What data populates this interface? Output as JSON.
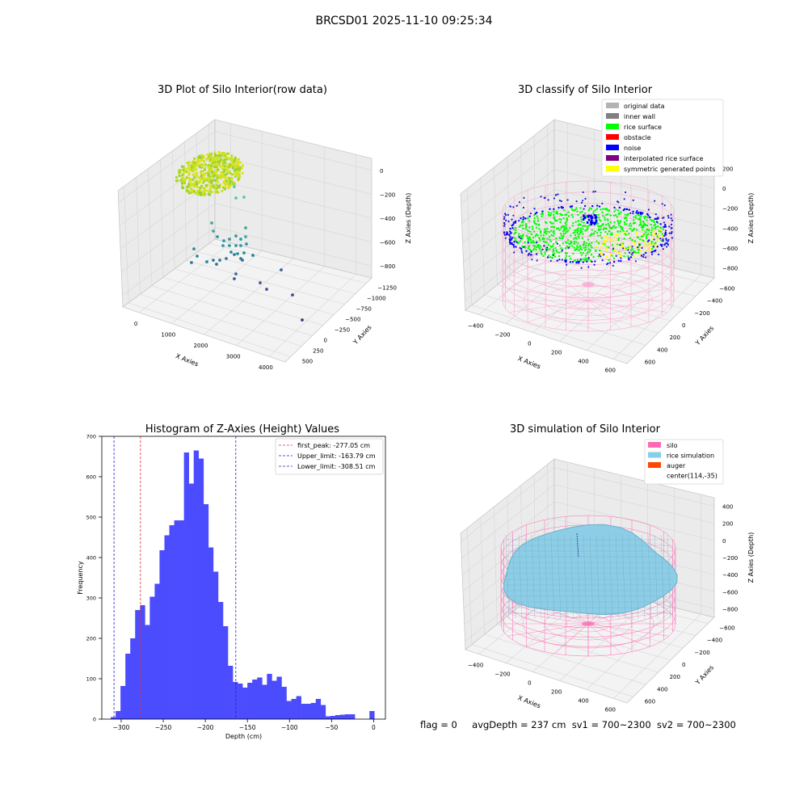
{
  "figure": {
    "suptitle": "BRCSD01 2025-11-10 09:25:34",
    "footer": {
      "flag": "flag = 0",
      "avg_depth": "avgDepth = 237 cm",
      "sv1": "sv1 = 700~2300",
      "sv2": "sv2 = 700~2300"
    }
  },
  "colors": {
    "hist_bar": "#4c4cff",
    "first_peak_line": "#e03030",
    "limit_line": "#2020c0",
    "silo_wire": "#ff69b4",
    "rice_simulation": "#8ecde6",
    "grid_pane": "#f2f2f2"
  },
  "chart_data": [
    {
      "type": "scatter3d",
      "title": "3D Plot of Silo Interior(row data)",
      "xlabel": "X Axies",
      "ylabel": "Y Axies",
      "zlabel": "Z Axies (Depth)",
      "xticks": [
        "0",
        "1000",
        "2000",
        "3000",
        "4000"
      ],
      "yticks": [
        "500",
        "250",
        "0",
        "−250",
        "−500",
        "−750",
        "−1000",
        "−1250"
      ],
      "zticks": [
        "0",
        "−200",
        "−400",
        "−600",
        "−800"
      ]
    },
    {
      "type": "scatter3d",
      "title": "3D classify of Silo Interior",
      "xlabel": "X Axies",
      "ylabel": "Y Axies",
      "zlabel": "Z Axies (Depth)",
      "xticks": [
        "−400",
        "−200",
        "0",
        "200",
        "400",
        "600"
      ],
      "yticks": [
        "600",
        "400",
        "200",
        "0",
        "−200",
        "−400",
        "−600"
      ],
      "zticks": [
        "200",
        "0",
        "−200",
        "−400",
        "−600",
        "−800"
      ],
      "legend_position": "top-right",
      "legend": [
        {
          "label": "original data",
          "color": "#b3b3b3"
        },
        {
          "label": "inner wall",
          "color": "#808080"
        },
        {
          "label": "rice surface",
          "color": "#00ff00"
        },
        {
          "label": "obstacle",
          "color": "#ff0000"
        },
        {
          "label": "noise",
          "color": "#0000ff"
        },
        {
          "label": "interpolated rice surface",
          "color": "#800080"
        },
        {
          "label": "symmetric generated points",
          "color": "#ffff00"
        }
      ]
    },
    {
      "type": "bar",
      "title": "Histogram of Z-Axies (Height) Values",
      "xlabel": "Depth (cm)",
      "ylabel": "Frequency",
      "xlim": [
        -323,
        14
      ],
      "ylim": [
        0,
        700
      ],
      "xticks": [
        -300,
        -250,
        -200,
        -150,
        -100,
        -50,
        0
      ],
      "yticks": [
        0,
        100,
        200,
        300,
        400,
        500,
        600,
        700
      ],
      "bin_width": 5.8,
      "bins": [
        {
          "x": -312.4,
          "count": 5
        },
        {
          "x": -306.6,
          "count": 20
        },
        {
          "x": -300.8,
          "count": 82
        },
        {
          "x": -295.0,
          "count": 162
        },
        {
          "x": -289.2,
          "count": 200
        },
        {
          "x": -283.4,
          "count": 270
        },
        {
          "x": -277.6,
          "count": 282
        },
        {
          "x": -271.8,
          "count": 233
        },
        {
          "x": -266.0,
          "count": 303
        },
        {
          "x": -260.2,
          "count": 335
        },
        {
          "x": -254.4,
          "count": 418
        },
        {
          "x": -248.6,
          "count": 455
        },
        {
          "x": -242.8,
          "count": 480
        },
        {
          "x": -237.0,
          "count": 492
        },
        {
          "x": -231.2,
          "count": 492
        },
        {
          "x": -225.4,
          "count": 660
        },
        {
          "x": -219.6,
          "count": 583
        },
        {
          "x": -213.8,
          "count": 665
        },
        {
          "x": -208.0,
          "count": 645
        },
        {
          "x": -202.2,
          "count": 532
        },
        {
          "x": -196.4,
          "count": 425
        },
        {
          "x": -190.6,
          "count": 365
        },
        {
          "x": -184.8,
          "count": 290
        },
        {
          "x": -179.0,
          "count": 230
        },
        {
          "x": -173.2,
          "count": 132
        },
        {
          "x": -167.4,
          "count": 92
        },
        {
          "x": -161.6,
          "count": 88
        },
        {
          "x": -155.8,
          "count": 78
        },
        {
          "x": -150.0,
          "count": 90
        },
        {
          "x": -144.2,
          "count": 98
        },
        {
          "x": -138.4,
          "count": 103
        },
        {
          "x": -132.6,
          "count": 85
        },
        {
          "x": -126.8,
          "count": 112
        },
        {
          "x": -121.0,
          "count": 95
        },
        {
          "x": -115.2,
          "count": 105
        },
        {
          "x": -109.4,
          "count": 80
        },
        {
          "x": -103.6,
          "count": 45
        },
        {
          "x": -97.8,
          "count": 50
        },
        {
          "x": -92.0,
          "count": 57
        },
        {
          "x": -86.2,
          "count": 38
        },
        {
          "x": -80.4,
          "count": 38
        },
        {
          "x": -74.6,
          "count": 40
        },
        {
          "x": -68.8,
          "count": 50
        },
        {
          "x": -63.0,
          "count": 35
        },
        {
          "x": -57.2,
          "count": 7
        },
        {
          "x": -51.4,
          "count": 8
        },
        {
          "x": -45.6,
          "count": 10
        },
        {
          "x": -39.8,
          "count": 11
        },
        {
          "x": -34.0,
          "count": 12
        },
        {
          "x": -28.2,
          "count": 12
        },
        {
          "x": -5.0,
          "count": 20
        }
      ],
      "vlines": [
        {
          "label": "first_peak: -277.05 cm",
          "x": -277.05,
          "color": "#e03030"
        },
        {
          "label": "Upper_limit: -163.79 cm",
          "x": -163.79,
          "color": "#2020c0"
        },
        {
          "label": "Lower_limit: -308.51 cm",
          "x": -308.51,
          "color": "#2020c0"
        }
      ],
      "legend_position": "top-right"
    },
    {
      "type": "surface3d",
      "title": "3D simulation of Silo Interior",
      "xlabel": "X Axies",
      "ylabel": "Y Axies",
      "zlabel": "Z Axies (Depth)",
      "xticks": [
        "−400",
        "−200",
        "0",
        "200",
        "400",
        "600"
      ],
      "yticks": [
        "600",
        "400",
        "200",
        "0",
        "−200",
        "−400",
        "−600"
      ],
      "zticks": [
        "400",
        "200",
        "0",
        "−200",
        "−400",
        "−600",
        "−800"
      ],
      "legend_position": "top-right",
      "legend": [
        {
          "label": "silo",
          "color": "#ff69b4"
        },
        {
          "label": "rice simulation",
          "color": "#87ceeb"
        },
        {
          "label": "auger",
          "color": "#ff4500"
        },
        {
          "label": "center(114,-35)",
          "color": ""
        }
      ]
    }
  ]
}
